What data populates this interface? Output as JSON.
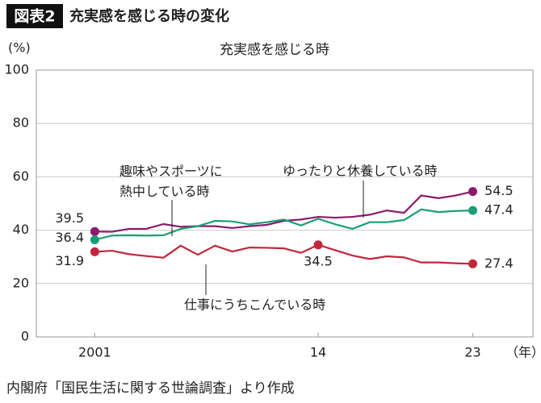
{
  "header": {
    "label": "図表2",
    "title": "充実感を感じる時の変化"
  },
  "chart_data": {
    "type": "line",
    "title": "充実感を感じる時",
    "y_label": "(%)",
    "x_label": "（年）",
    "x": [
      2001,
      2002,
      2003,
      2004,
      2005,
      2006,
      2007,
      2008,
      2009,
      2010,
      2011,
      2012,
      2013,
      2014,
      2015,
      2016,
      2017,
      2018,
      2019,
      2020,
      2021,
      2022,
      2023
    ],
    "series": [
      {
        "name": "ゆったりと休養している時",
        "color": "#8b1a6b",
        "values": [
          39.5,
          39.4,
          40.5,
          40.5,
          42.3,
          41.3,
          41.5,
          41.5,
          40.8,
          41.5,
          42,
          43.5,
          44,
          45,
          44.7,
          45,
          45.8,
          47.4,
          46.5,
          53,
          52,
          53,
          54.5
        ]
      },
      {
        "name": "趣味やスポーツに熱中している時",
        "color": "#1a9e78",
        "values": [
          36.4,
          38,
          38.1,
          38,
          38.1,
          40.5,
          41.5,
          43.5,
          43.3,
          42.2,
          43,
          44,
          41.8,
          44.3,
          42.2,
          40.5,
          43,
          43,
          43.8,
          47.8,
          46.8,
          47.2,
          47.4
        ]
      },
      {
        "name": "仕事にうちこんでいる時",
        "color": "#c0273a",
        "values": [
          31.9,
          32.3,
          31,
          30.3,
          29.7,
          34.2,
          30.8,
          34.2,
          32,
          33.5,
          33.4,
          33.2,
          31.5,
          34.5,
          32.5,
          30.5,
          29.2,
          30.2,
          29.8,
          27.9,
          27.9,
          27.6,
          27.4
        ]
      }
    ],
    "xlim": [
      1997.6,
      2026.5
    ],
    "xticks": [
      2001,
      {
        "value": 2014,
        "label": "14"
      },
      {
        "value": 2023,
        "label": "23"
      }
    ],
    "ylim": [
      0,
      100
    ],
    "yticks": [
      0,
      20,
      40,
      60,
      80,
      100
    ],
    "grid": true
  },
  "source": "内閣府「国民生活に関する世論調査」より作成"
}
